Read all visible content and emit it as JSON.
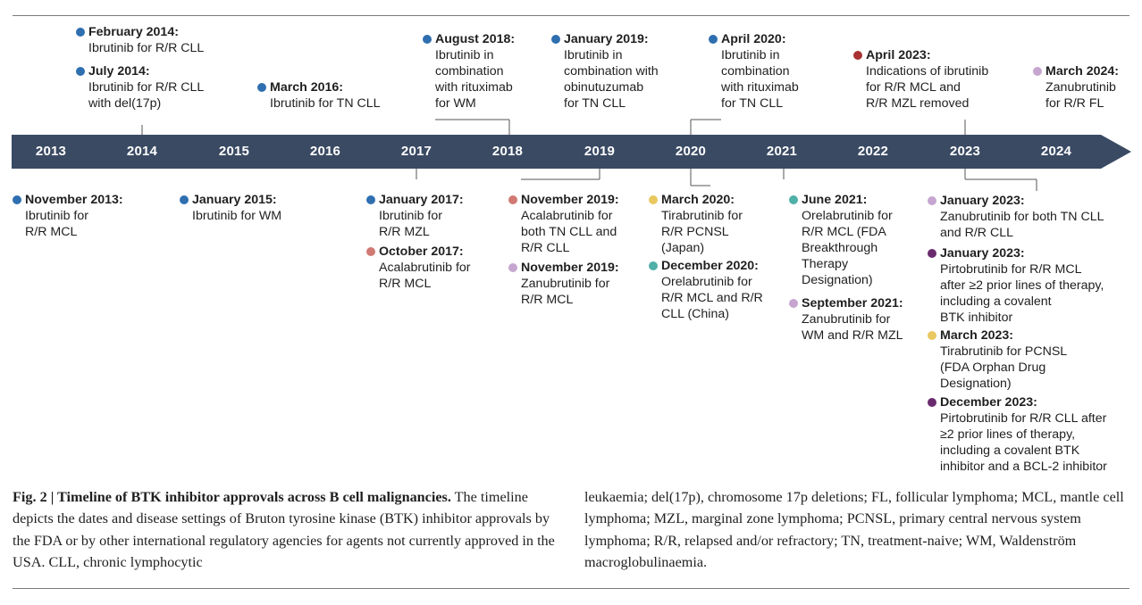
{
  "colors": {
    "bar": "#3a4a63",
    "ibrutinib": "#2f6fb0",
    "acalabrutinib": "#d07a73",
    "zanubrutinib": "#c6a6d0",
    "tirabrutinib": "#e9c860",
    "orelabrutinib": "#4fb0a8",
    "pirtobrutinib": "#6a2a6e",
    "removed": "#a83232",
    "connector": "#555555"
  },
  "years": [
    "2013",
    "2014",
    "2015",
    "2016",
    "2017",
    "2018",
    "2019",
    "2020",
    "2021",
    "2022",
    "2023",
    "2024"
  ],
  "above": [
    {
      "date": "February 2014:",
      "desc": "Ibrutinib for R/R CLL",
      "color_key": "ibrutinib"
    },
    {
      "date": "July 2014:",
      "desc": "Ibrutinib for R/R CLL\nwith del(17p)",
      "color_key": "ibrutinib"
    },
    {
      "date": "March 2016:",
      "desc": "Ibrutinib for TN CLL",
      "color_key": "ibrutinib"
    },
    {
      "date": "August 2018:",
      "desc": "Ibrutinib in\ncombination\nwith rituximab\nfor WM",
      "color_key": "ibrutinib"
    },
    {
      "date": "January 2019:",
      "desc": "Ibrutinib in\ncombination with\nobinutuzumab\nfor TN CLL",
      "color_key": "ibrutinib"
    },
    {
      "date": "April 2020:",
      "desc": "Ibrutinib in\ncombination\nwith rituximab\nfor TN CLL",
      "color_key": "ibrutinib"
    },
    {
      "date": "April 2023:",
      "desc": "Indications of ibrutinib\nfor R/R MCL and\nR/R MZL removed",
      "color_key": "removed"
    },
    {
      "date": "March 2024:",
      "desc": "Zanubrutinib\nfor R/R FL",
      "color_key": "zanubrutinib"
    }
  ],
  "below": [
    {
      "date": "November 2013:",
      "desc": "Ibrutinib for\nR/R MCL",
      "color_key": "ibrutinib"
    },
    {
      "date": "January 2015:",
      "desc": "Ibrutinib for WM",
      "color_key": "ibrutinib"
    },
    {
      "date": "January 2017:",
      "desc": "Ibrutinib for\nR/R MZL",
      "color_key": "ibrutinib"
    },
    {
      "date": "October 2017:",
      "desc": "Acalabrutinib for\nR/R MCL",
      "color_key": "acalabrutinib"
    },
    {
      "date": "November 2019:",
      "desc": "Acalabrutinib for\nboth TN CLL and\nR/R CLL",
      "color_key": "acalabrutinib"
    },
    {
      "date": "November 2019:",
      "desc": "Zanubrutinib for\nR/R MCL",
      "color_key": "zanubrutinib"
    },
    {
      "date": "March 2020:",
      "desc": "Tirabrutinib for\nR/R PCNSL\n(Japan)",
      "color_key": "tirabrutinib"
    },
    {
      "date": "December 2020:",
      "desc": "Orelabrutinib for\nR/R MCL and R/R\nCLL (China)",
      "color_key": "orelabrutinib"
    },
    {
      "date": "June 2021:",
      "desc": "Orelabrutinib for\nR/R MCL (FDA\nBreakthrough\nTherapy\nDesignation)",
      "color_key": "orelabrutinib"
    },
    {
      "date": "September 2021:",
      "desc": "Zanubrutinib for\nWM and R/R MZL",
      "color_key": "zanubrutinib"
    },
    {
      "date": "January 2023:",
      "desc": "Zanubrutinib for both TN CLL\nand R/R CLL",
      "color_key": "zanubrutinib"
    },
    {
      "date": "January 2023:",
      "desc": "Pirtobrutinib for R/R MCL\nafter ≥2 prior lines of therapy,\nincluding a covalent\nBTK inhibitor",
      "color_key": "pirtobrutinib"
    },
    {
      "date": "March 2023:",
      "desc": "Tirabrutinib for PCNSL\n(FDA Orphan Drug\nDesignation)",
      "color_key": "tirabrutinib"
    },
    {
      "date": "December 2023:",
      "desc": "Pirtobrutinib for R/R CLL after\n≥2 prior lines of therapy,\nincluding a covalent BTK\ninhibitor and a BCL-2 inhibitor",
      "color_key": "pirtobrutinib"
    }
  ],
  "caption": {
    "title": "Fig. 2 | Timeline of BTK inhibitor approvals across B cell malignancies.",
    "left_text": "The timeline depicts the dates and disease settings of Bruton tyrosine kinase (BTK) inhibitor approvals by the FDA or by other international regulatory agencies for agents not currently approved in the USA. CLL, chronic lymphocytic",
    "right_text": "leukaemia; del(17p), chromosome 17p deletions; FL, follicular lymphoma; MCL, mantle cell lymphoma; MZL, marginal zone lymphoma; PCNSL, primary central nervous system lymphoma; R/R, relapsed and/or refractory; TN, treatment-naive; WM, Waldenström macroglobulinaemia."
  }
}
